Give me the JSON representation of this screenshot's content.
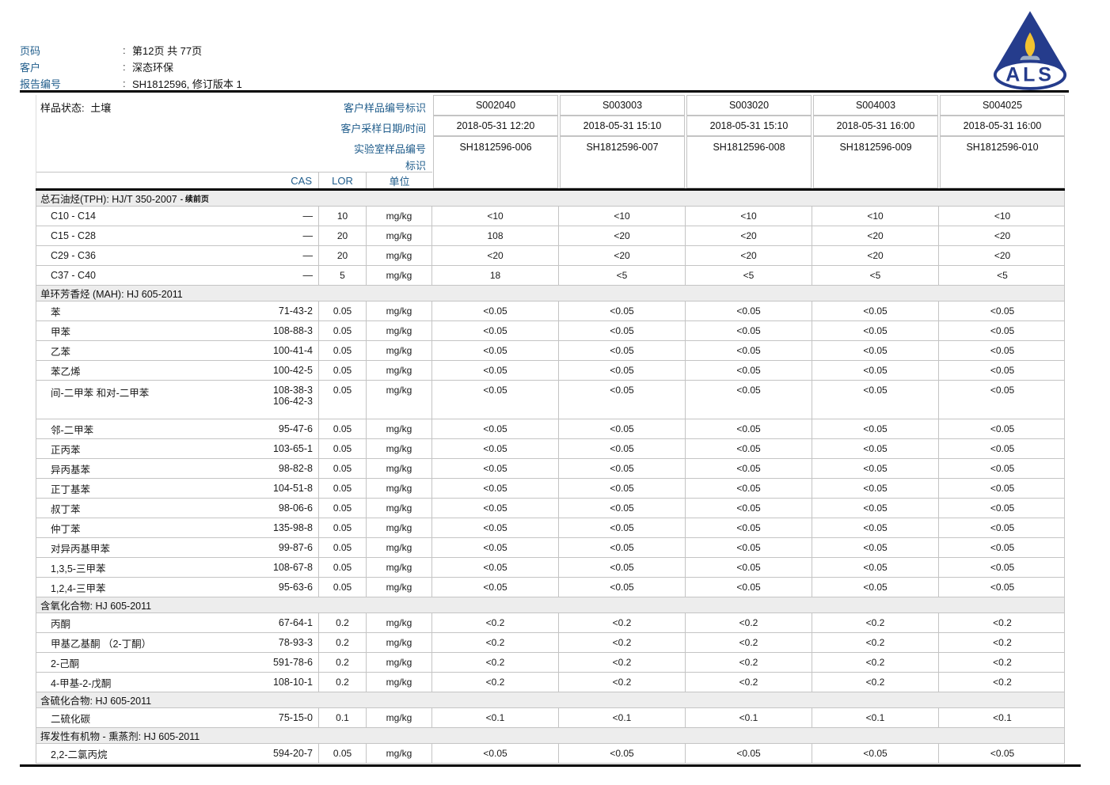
{
  "header": {
    "separator": ":",
    "rows": [
      {
        "label": "页码",
        "value": "第12页 共 77页"
      },
      {
        "label": "客户",
        "value": "深态环保"
      },
      {
        "label": "报告编号",
        "value": "SH1812596, 修订版本 1"
      }
    ],
    "logo_text": "ALS"
  },
  "sample_info": {
    "state_label": "样品状态:",
    "state_value": "土壤",
    "row_labels": [
      "客户样品编号标识",
      "客户采样日期/时间",
      "实验室样品编号",
      "标识"
    ],
    "columns": [
      {
        "id": "S002040",
        "datetime": "2018-05-31 12:20",
        "lab_id": "SH1812596-006"
      },
      {
        "id": "S003003",
        "datetime": "2018-05-31 15:10",
        "lab_id": "SH1812596-007"
      },
      {
        "id": "S003020",
        "datetime": "2018-05-31 15:10",
        "lab_id": "SH1812596-008"
      },
      {
        "id": "S004003",
        "datetime": "2018-05-31 16:00",
        "lab_id": "SH1812596-009"
      },
      {
        "id": "S004025",
        "datetime": "2018-05-31 16:00",
        "lab_id": "SH1812596-010"
      }
    ]
  },
  "table": {
    "headers": {
      "cas": "CAS",
      "lor": "LOR",
      "unit": "单位"
    },
    "sections": [
      {
        "title": "总石油烃(TPH): HJ/T 350-2007",
        "suffix": "- 续前页",
        "rows": [
          {
            "name": "C10 - C14",
            "cas": "—",
            "lor": "10",
            "unit": "mg/kg",
            "values": [
              "<10",
              "<10",
              "<10",
              "<10",
              "<10"
            ]
          },
          {
            "name": "C15 - C28",
            "cas": "—",
            "lor": "20",
            "unit": "mg/kg",
            "values": [
              "108",
              "<20",
              "<20",
              "<20",
              "<20"
            ]
          },
          {
            "name": "C29 - C36",
            "cas": "—",
            "lor": "20",
            "unit": "mg/kg",
            "values": [
              "<20",
              "<20",
              "<20",
              "<20",
              "<20"
            ]
          },
          {
            "name": "C37 - C40",
            "cas": "—",
            "lor": "5",
            "unit": "mg/kg",
            "values": [
              "18",
              "<5",
              "<5",
              "<5",
              "<5"
            ]
          }
        ]
      },
      {
        "title": "单环芳香烃 (MAH): HJ 605-2011",
        "suffix": "",
        "rows": [
          {
            "name": "苯",
            "cas": "71-43-2",
            "lor": "0.05",
            "unit": "mg/kg",
            "values": [
              "<0.05",
              "<0.05",
              "<0.05",
              "<0.05",
              "<0.05"
            ]
          },
          {
            "name": "甲苯",
            "cas": "108-88-3",
            "lor": "0.05",
            "unit": "mg/kg",
            "values": [
              "<0.05",
              "<0.05",
              "<0.05",
              "<0.05",
              "<0.05"
            ]
          },
          {
            "name": "乙苯",
            "cas": "100-41-4",
            "lor": "0.05",
            "unit": "mg/kg",
            "values": [
              "<0.05",
              "<0.05",
              "<0.05",
              "<0.05",
              "<0.05"
            ]
          },
          {
            "name": "苯乙烯",
            "cas": "100-42-5",
            "lor": "0.05",
            "unit": "mg/kg",
            "values": [
              "<0.05",
              "<0.05",
              "<0.05",
              "<0.05",
              "<0.05"
            ]
          },
          {
            "name": "间-二甲苯 和对-二甲苯",
            "cas": "108-38-3",
            "cas2": "106-42-3",
            "lor": "0.05",
            "unit": "mg/kg",
            "values": [
              "<0.05",
              "<0.05",
              "<0.05",
              "<0.05",
              "<0.05"
            ]
          },
          {
            "name": "邻-二甲苯",
            "cas": "95-47-6",
            "lor": "0.05",
            "unit": "mg/kg",
            "values": [
              "<0.05",
              "<0.05",
              "<0.05",
              "<0.05",
              "<0.05"
            ]
          },
          {
            "name": "正丙苯",
            "cas": "103-65-1",
            "lor": "0.05",
            "unit": "mg/kg",
            "values": [
              "<0.05",
              "<0.05",
              "<0.05",
              "<0.05",
              "<0.05"
            ]
          },
          {
            "name": "异丙基苯",
            "cas": "98-82-8",
            "lor": "0.05",
            "unit": "mg/kg",
            "values": [
              "<0.05",
              "<0.05",
              "<0.05",
              "<0.05",
              "<0.05"
            ]
          },
          {
            "name": "正丁基苯",
            "cas": "104-51-8",
            "lor": "0.05",
            "unit": "mg/kg",
            "values": [
              "<0.05",
              "<0.05",
              "<0.05",
              "<0.05",
              "<0.05"
            ]
          },
          {
            "name": "叔丁苯",
            "cas": "98-06-6",
            "lor": "0.05",
            "unit": "mg/kg",
            "values": [
              "<0.05",
              "<0.05",
              "<0.05",
              "<0.05",
              "<0.05"
            ]
          },
          {
            "name": "仲丁苯",
            "cas": "135-98-8",
            "lor": "0.05",
            "unit": "mg/kg",
            "values": [
              "<0.05",
              "<0.05",
              "<0.05",
              "<0.05",
              "<0.05"
            ]
          },
          {
            "name": "对异丙基甲苯",
            "cas": "99-87-6",
            "lor": "0.05",
            "unit": "mg/kg",
            "values": [
              "<0.05",
              "<0.05",
              "<0.05",
              "<0.05",
              "<0.05"
            ]
          },
          {
            "name": "1,3,5-三甲苯",
            "cas": "108-67-8",
            "lor": "0.05",
            "unit": "mg/kg",
            "values": [
              "<0.05",
              "<0.05",
              "<0.05",
              "<0.05",
              "<0.05"
            ]
          },
          {
            "name": "1,2,4-三甲苯",
            "cas": "95-63-6",
            "lor": "0.05",
            "unit": "mg/kg",
            "values": [
              "<0.05",
              "<0.05",
              "<0.05",
              "<0.05",
              "<0.05"
            ]
          }
        ]
      },
      {
        "title": "含氧化合物: HJ 605-2011",
        "suffix": "",
        "rows": [
          {
            "name": "丙酮",
            "cas": "67-64-1",
            "lor": "0.2",
            "unit": "mg/kg",
            "values": [
              "<0.2",
              "<0.2",
              "<0.2",
              "<0.2",
              "<0.2"
            ]
          },
          {
            "name": "甲基乙基酮 （2-丁酮）",
            "cas": "78-93-3",
            "lor": "0.2",
            "unit": "mg/kg",
            "values": [
              "<0.2",
              "<0.2",
              "<0.2",
              "<0.2",
              "<0.2"
            ]
          },
          {
            "name": "2-己酮",
            "cas": "591-78-6",
            "lor": "0.2",
            "unit": "mg/kg",
            "values": [
              "<0.2",
              "<0.2",
              "<0.2",
              "<0.2",
              "<0.2"
            ]
          },
          {
            "name": "4-甲基-2-戊酮",
            "cas": "108-10-1",
            "lor": "0.2",
            "unit": "mg/kg",
            "values": [
              "<0.2",
              "<0.2",
              "<0.2",
              "<0.2",
              "<0.2"
            ]
          }
        ]
      },
      {
        "title": "含硫化合物: HJ 605-2011",
        "suffix": "",
        "rows": [
          {
            "name": "二硫化碳",
            "cas": "75-15-0",
            "lor": "0.1",
            "unit": "mg/kg",
            "values": [
              "<0.1",
              "<0.1",
              "<0.1",
              "<0.1",
              "<0.1"
            ]
          }
        ]
      },
      {
        "title": "挥发性有机物 - 熏蒸剂: HJ 605-2011",
        "suffix": "",
        "rows": [
          {
            "name": "2,2-二氯丙烷",
            "cas": "594-20-7",
            "lor": "0.05",
            "unit": "mg/kg",
            "values": [
              "<0.05",
              "<0.05",
              "<0.05",
              "<0.05",
              "<0.05"
            ]
          }
        ]
      }
    ]
  },
  "colors": {
    "accent_blue": "#1F5C8B",
    "logo_navy": "#253C8C",
    "flame_yellow": "#F2C230",
    "burner_gray": "#9DAEC6",
    "section_bg": "#EDEDED",
    "border_gray": "#C4C4C4",
    "line_black": "#000000"
  }
}
